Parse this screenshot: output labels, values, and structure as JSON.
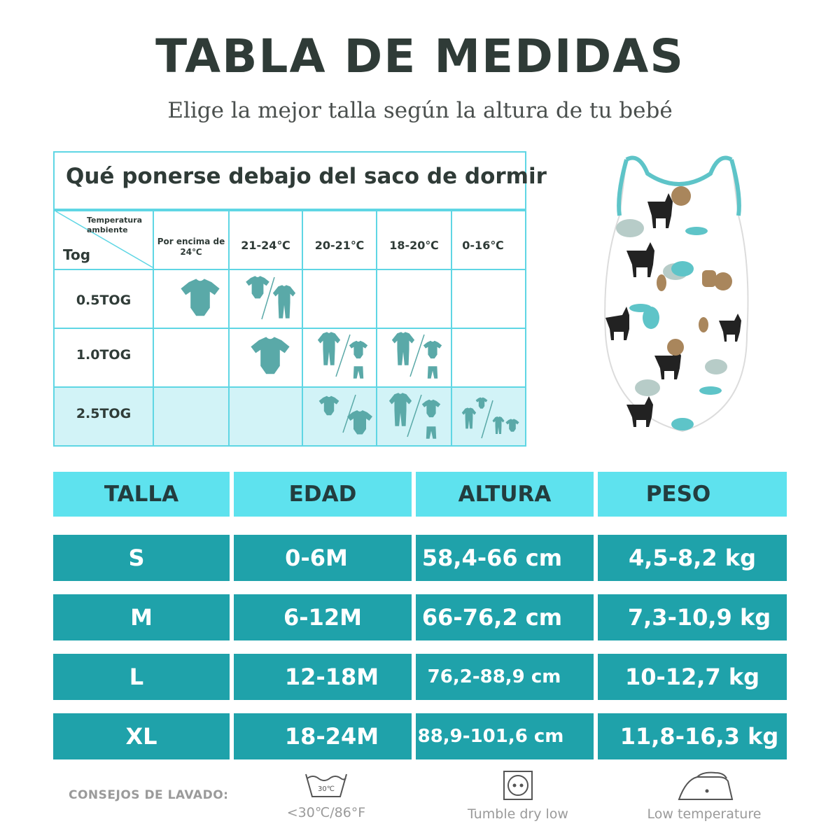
{
  "header": {
    "title": "TABLA DE MEDIDAS",
    "subtitle": "Elige la mejor talla según la altura de tu bebé"
  },
  "tog_table": {
    "title": "Qué ponerse debajo del saco de dormir",
    "corner_top": "Temperatura ambiente",
    "corner_bottom": "Tog",
    "temperatures": [
      "Por encima de 24℃",
      "21-24℃",
      "20-21℃",
      "18-20℃",
      "0-16℃"
    ],
    "rows": [
      {
        "label": "0.5TOG",
        "outfits": [
          "bodysuit",
          "bodysuit-or-sleepsuit",
          "",
          "",
          ""
        ]
      },
      {
        "label": "1.0TOG",
        "outfits": [
          "",
          "bodysuit",
          "sleepsuit-or-bodysuit-pants",
          "sleepsuit-or-bodysuit-pants",
          ""
        ]
      },
      {
        "label": "2.5TOG",
        "outfits": [
          "",
          "",
          "top-or-bodysuit",
          "sleepsuit-or-bodysuit-pants",
          "sleepsuit-or-layers"
        ]
      }
    ]
  },
  "size_table": {
    "headers": [
      "TALLA",
      "EDAD",
      "ALTURA",
      "PESO"
    ],
    "rows": [
      {
        "talla": "S",
        "edad": "0-6M",
        "altura": "58,4-66 cm",
        "peso": "4,5-8,2 kg"
      },
      {
        "talla": "M",
        "edad": "6-12M",
        "altura": "66-76,2 cm",
        "peso": "7,3-10,9 kg"
      },
      {
        "talla": "L",
        "edad": "12-18M",
        "altura": "76,2-88,9 cm",
        "peso": "10-12,7 kg"
      },
      {
        "talla": "XL",
        "edad": "18-24M",
        "altura": "88,9-101,6 cm",
        "peso": "11,8-16,3 kg"
      }
    ]
  },
  "care": {
    "label": "CONSEJOS DE LAVADO:",
    "wash_icon_text": "30℃",
    "wash": "<30℃/86°F",
    "dry": "Tumble dry low",
    "iron": "Low temperature"
  },
  "colors": {
    "title": "#2f3b37",
    "grid": "#5fd6e4",
    "header_bg": "#5ee2ee",
    "row_bg": "#1fa2aa",
    "icon": "#5aa9a8"
  },
  "icons": [
    "bodysuit-icon",
    "sleepsuit-icon",
    "pants-icon",
    "sleeping-bag-illustration",
    "wash-30-icon",
    "tumble-dry-low-icon",
    "iron-low-icon"
  ]
}
